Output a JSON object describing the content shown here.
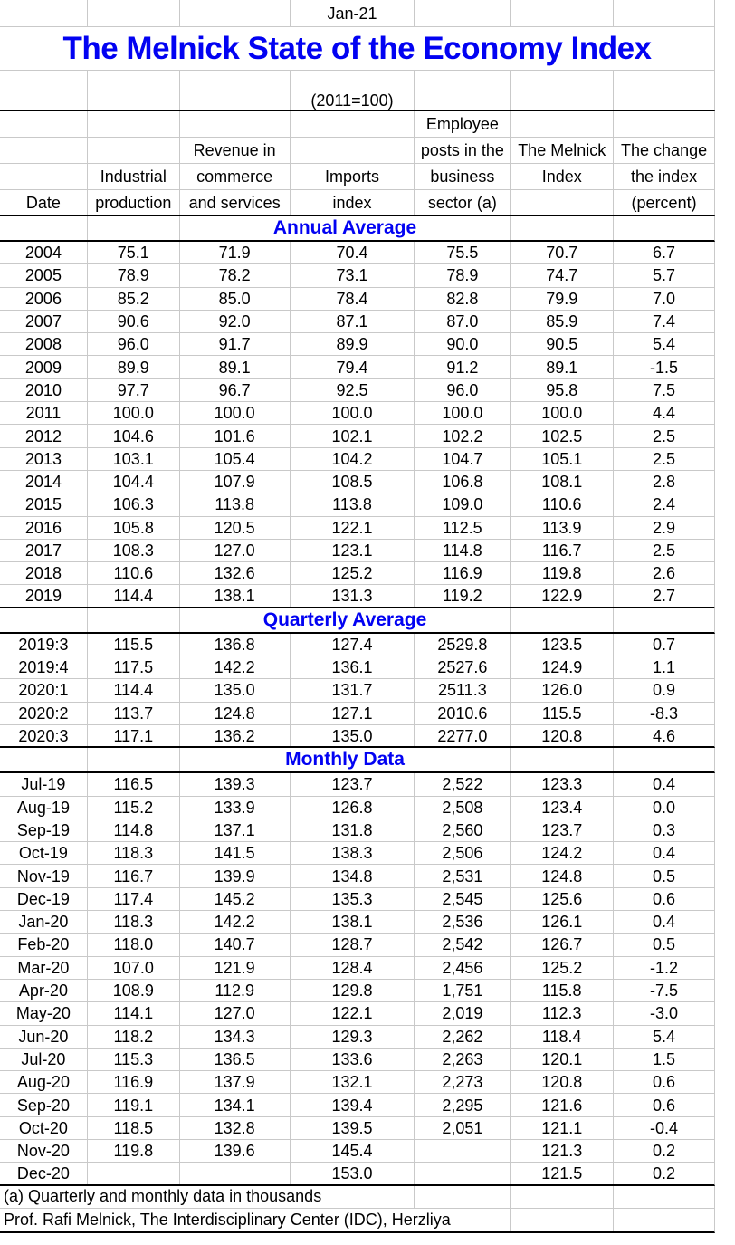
{
  "sheet": {
    "report_date": "Jan-21",
    "title": "The Melnick State of the Economy Index",
    "subtitle": "(2011=100)"
  },
  "colors": {
    "accent_blue": "#0202f2",
    "gridline": "#c9c9c9",
    "section_border": "#000000"
  },
  "columns": [
    {
      "id": "date",
      "lines": [
        "",
        "",
        "",
        "Date"
      ]
    },
    {
      "id": "industrial-production",
      "lines": [
        "",
        "",
        "Industrial",
        "production"
      ]
    },
    {
      "id": "revenue-commerce-services",
      "lines": [
        "",
        "Revenue in",
        "commerce",
        "and services"
      ]
    },
    {
      "id": "imports-index",
      "lines": [
        "",
        "",
        "Imports",
        "index"
      ]
    },
    {
      "id": "employee-posts",
      "lines": [
        "Employee",
        "posts in the",
        "business",
        "sector (a)"
      ]
    },
    {
      "id": "melnick-index",
      "lines": [
        "",
        "The Melnick",
        "Index",
        ""
      ]
    },
    {
      "id": "change-percent",
      "lines": [
        "",
        "The change",
        "the index",
        "(percent)"
      ]
    }
  ],
  "sections": [
    {
      "title": "Annual Average",
      "rows": [
        [
          "2004",
          "75.1",
          "71.9",
          "70.4",
          "75.5",
          "70.7",
          "6.7"
        ],
        [
          "2005",
          "78.9",
          "78.2",
          "73.1",
          "78.9",
          "74.7",
          "5.7"
        ],
        [
          "2006",
          "85.2",
          "85.0",
          "78.4",
          "82.8",
          "79.9",
          "7.0"
        ],
        [
          "2007",
          "90.6",
          "92.0",
          "87.1",
          "87.0",
          "85.9",
          "7.4"
        ],
        [
          "2008",
          "96.0",
          "91.7",
          "89.9",
          "90.0",
          "90.5",
          "5.4"
        ],
        [
          "2009",
          "89.9",
          "89.1",
          "79.4",
          "91.2",
          "89.1",
          "-1.5"
        ],
        [
          "2010",
          "97.7",
          "96.7",
          "92.5",
          "96.0",
          "95.8",
          "7.5"
        ],
        [
          "2011",
          "100.0",
          "100.0",
          "100.0",
          "100.0",
          "100.0",
          "4.4"
        ],
        [
          "2012",
          "104.6",
          "101.6",
          "102.1",
          "102.2",
          "102.5",
          "2.5"
        ],
        [
          "2013",
          "103.1",
          "105.4",
          "104.2",
          "104.7",
          "105.1",
          "2.5"
        ],
        [
          "2014",
          "104.4",
          "107.9",
          "108.5",
          "106.8",
          "108.1",
          "2.8"
        ],
        [
          "2015",
          "106.3",
          "113.8",
          "113.8",
          "109.0",
          "110.6",
          "2.4"
        ],
        [
          "2016",
          "105.8",
          "120.5",
          "122.1",
          "112.5",
          "113.9",
          "2.9"
        ],
        [
          "2017",
          "108.3",
          "127.0",
          "123.1",
          "114.8",
          "116.7",
          "2.5"
        ],
        [
          "2018",
          "110.6",
          "132.6",
          "125.2",
          "116.9",
          "119.8",
          "2.6"
        ],
        [
          "2019",
          "114.4",
          "138.1",
          "131.3",
          "119.2",
          "122.9",
          "2.7"
        ]
      ]
    },
    {
      "title": "Quarterly Average",
      "rows": [
        [
          "2019:3",
          "115.5",
          "136.8",
          "127.4",
          "2529.8",
          "123.5",
          "0.7"
        ],
        [
          "2019:4",
          "117.5",
          "142.2",
          "136.1",
          "2527.6",
          "124.9",
          "1.1"
        ],
        [
          "2020:1",
          "114.4",
          "135.0",
          "131.7",
          "2511.3",
          "126.0",
          "0.9"
        ],
        [
          "2020:2",
          "113.7",
          "124.8",
          "127.1",
          "2010.6",
          "115.5",
          "-8.3"
        ],
        [
          "2020:3",
          "117.1",
          "136.2",
          "135.0",
          "2277.0",
          "120.8",
          "4.6"
        ]
      ]
    },
    {
      "title": "Monthly Data",
      "rows": [
        [
          "Jul-19",
          "116.5",
          "139.3",
          "123.7",
          "2,522",
          "123.3",
          "0.4"
        ],
        [
          "Aug-19",
          "115.2",
          "133.9",
          "126.8",
          "2,508",
          "123.4",
          "0.0"
        ],
        [
          "Sep-19",
          "114.8",
          "137.1",
          "131.8",
          "2,560",
          "123.7",
          "0.3"
        ],
        [
          "Oct-19",
          "118.3",
          "141.5",
          "138.3",
          "2,506",
          "124.2",
          "0.4"
        ],
        [
          "Nov-19",
          "116.7",
          "139.9",
          "134.8",
          "2,531",
          "124.8",
          "0.5"
        ],
        [
          "Dec-19",
          "117.4",
          "145.2",
          "135.3",
          "2,545",
          "125.6",
          "0.6"
        ],
        [
          "Jan-20",
          "118.3",
          "142.2",
          "138.1",
          "2,536",
          "126.1",
          "0.4"
        ],
        [
          "Feb-20",
          "118.0",
          "140.7",
          "128.7",
          "2,542",
          "126.7",
          "0.5"
        ],
        [
          "Mar-20",
          "107.0",
          "121.9",
          "128.4",
          "2,456",
          "125.2",
          "-1.2"
        ],
        [
          "Apr-20",
          "108.9",
          "112.9",
          "129.8",
          "1,751",
          "115.8",
          "-7.5"
        ],
        [
          "May-20",
          "114.1",
          "127.0",
          "122.1",
          "2,019",
          "112.3",
          "-3.0"
        ],
        [
          "Jun-20",
          "118.2",
          "134.3",
          "129.3",
          "2,262",
          "118.4",
          "5.4"
        ],
        [
          "Jul-20",
          "115.3",
          "136.5",
          "133.6",
          "2,263",
          "120.1",
          "1.5"
        ],
        [
          "Aug-20",
          "116.9",
          "137.9",
          "132.1",
          "2,273",
          "120.8",
          "0.6"
        ],
        [
          "Sep-20",
          "119.1",
          "134.1",
          "139.4",
          "2,295",
          "121.6",
          "0.6"
        ],
        [
          "Oct-20",
          "118.5",
          "132.8",
          "139.5",
          "2,051",
          "121.1",
          "-0.4"
        ],
        [
          "Nov-20",
          "119.8",
          "139.6",
          "145.4",
          "",
          "121.3",
          "0.2"
        ],
        [
          "Dec-20",
          "",
          "",
          "153.0",
          "",
          "121.5",
          "0.2"
        ]
      ]
    }
  ],
  "footnotes": [
    "(a) Quarterly and monthly data in thousands",
    "Prof. Rafi Melnick, The Interdisciplinary Center (IDC), Herzliya"
  ]
}
